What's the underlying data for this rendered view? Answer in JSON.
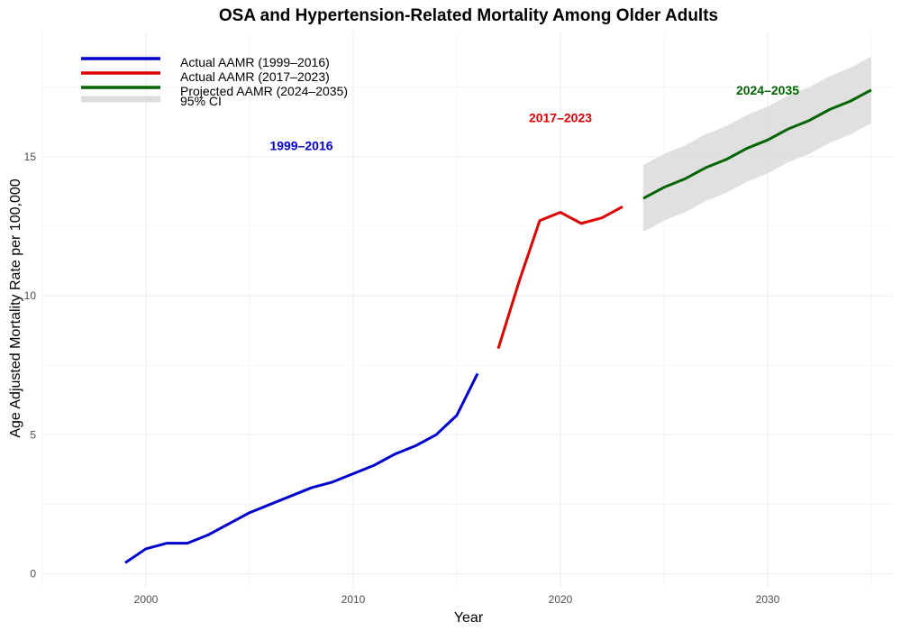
{
  "chart_data": {
    "type": "line",
    "title": "OSA and Hypertension-Related Mortality Among Older Adults",
    "xlabel": "Year",
    "ylabel": "Age Adjusted Mortality Rate per 100,000",
    "xlim": [
      1995,
      2036
    ],
    "ylim": [
      -0.5,
      19.5
    ],
    "x_ticks": [
      2000,
      2010,
      2020,
      2030
    ],
    "y_ticks": [
      0,
      5,
      10,
      15
    ],
    "x_tick_labels": [
      "2000",
      "2010",
      "2020",
      "2030"
    ],
    "y_tick_labels": [
      "0",
      "5",
      "10",
      "15"
    ],
    "grid": true,
    "legend_position": "top-left",
    "series": [
      {
        "name": "Actual AAMR (1999–2016)",
        "color": "#0000CD",
        "x": [
          1999,
          2000,
          2001,
          2002,
          2003,
          2004,
          2005,
          2006,
          2007,
          2008,
          2009,
          2010,
          2011,
          2012,
          2013,
          2014,
          2015,
          2016
        ],
        "values": [
          0.4,
          0.9,
          1.1,
          1.1,
          1.4,
          1.8,
          2.2,
          2.5,
          2.8,
          3.1,
          3.3,
          3.6,
          3.9,
          4.3,
          4.6,
          5.0,
          5.7,
          7.2
        ]
      },
      {
        "name": "Actual AAMR (2017–2023)",
        "color": "#DD0000",
        "x": [
          2017,
          2018,
          2019,
          2020,
          2021,
          2022,
          2023
        ],
        "values": [
          8.1,
          10.5,
          12.7,
          13.0,
          12.6,
          12.8,
          13.2
        ]
      },
      {
        "name": "Projected AAMR (2024–2035)",
        "color": "#006400",
        "x": [
          2024,
          2025,
          2026,
          2027,
          2028,
          2029,
          2030,
          2031,
          2032,
          2033,
          2034,
          2035
        ],
        "values": [
          13.5,
          13.9,
          14.2,
          14.6,
          14.9,
          15.3,
          15.6,
          16.0,
          16.3,
          16.7,
          17.0,
          17.4
        ],
        "ci_lower": [
          12.3,
          12.7,
          13.0,
          13.4,
          13.7,
          14.1,
          14.4,
          14.8,
          15.1,
          15.5,
          15.8,
          16.2
        ],
        "ci_upper": [
          14.7,
          15.1,
          15.4,
          15.8,
          16.1,
          16.5,
          16.8,
          17.2,
          17.5,
          17.9,
          18.2,
          18.6
        ]
      }
    ],
    "ci_legend": {
      "name": "95% CI",
      "color": "#DDDDDD"
    },
    "annotations": [
      {
        "text": "1999–2016",
        "x": 2007.5,
        "y": 15.4,
        "color": "#0000CD"
      },
      {
        "text": "2017–2023",
        "x": 2020,
        "y": 16.4,
        "color": "#DD0000"
      },
      {
        "text": "2024–2035",
        "x": 2030,
        "y": 17.4,
        "color": "#006400"
      }
    ]
  }
}
